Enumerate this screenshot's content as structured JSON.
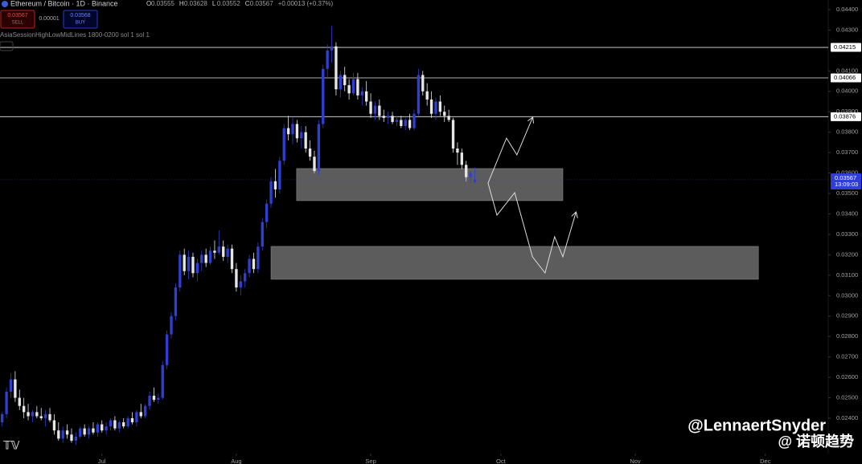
{
  "chart_data": {
    "type": "candlestick",
    "title": "Ethereum / Bitcoin · 1D · Binance",
    "indicator": "AsiaSessionHighLowMidLines 1800-0200 sol 1 sol 1",
    "ohlc_letters": [
      "O",
      "H",
      "L",
      "C"
    ],
    "change": "+0.00013 (+0.37%)",
    "countdown": "13:09:03",
    "trade_panel": {
      "sell_price": 0.03567,
      "sell": "SELL",
      "spread": 1e-05,
      "buy_price": 0.03568,
      "buy": "BUY"
    },
    "up_color": "#2f3fd1",
    "down_color": "#e6e6e6",
    "grid": false,
    "xlim": [
      -0.5,
      190.5
    ],
    "ylim": [
      0.02227,
      0.04447
    ],
    "xticks": [
      {
        "value": 23,
        "label": "Jul"
      },
      {
        "value": 54,
        "label": "Aug"
      },
      {
        "value": 85,
        "label": "Sep"
      },
      {
        "value": 115,
        "label": "Oct"
      },
      {
        "value": 146,
        "label": "Nov"
      },
      {
        "value": 176,
        "label": "Dec"
      }
    ],
    "yticks": [
      {
        "value": 0.044,
        "label": "0.04400"
      },
      {
        "value": 0.043,
        "label": "0.04300"
      },
      {
        "value": 0.041,
        "label": "0.04100"
      },
      {
        "value": 0.04,
        "label": "0.04000"
      },
      {
        "value": 0.039,
        "label": "0.03900"
      },
      {
        "value": 0.038,
        "label": "0.03800"
      },
      {
        "value": 0.037,
        "label": "0.03700"
      },
      {
        "value": 0.036,
        "label": "0.03600"
      },
      {
        "value": 0.035,
        "label": "0.03500"
      },
      {
        "value": 0.034,
        "label": "0.03400"
      },
      {
        "value": 0.033,
        "label": "0.03300"
      },
      {
        "value": 0.032,
        "label": "0.03200"
      },
      {
        "value": 0.031,
        "label": "0.03100"
      },
      {
        "value": 0.03,
        "label": "0.03000"
      },
      {
        "value": 0.029,
        "label": "0.02900"
      },
      {
        "value": 0.028,
        "label": "0.02800"
      },
      {
        "value": 0.027,
        "label": "0.02700"
      },
      {
        "value": 0.026,
        "label": "0.02600"
      },
      {
        "value": 0.025,
        "label": "0.02500"
      },
      {
        "value": 0.024,
        "label": "0.02400"
      }
    ],
    "levels": [
      0.04215,
      0.04066,
      0.03876
    ],
    "zones": [
      {
        "from": 67.9,
        "to": 129.3,
        "top": 0.03622,
        "bottom": 0.03465
      },
      {
        "from": 62,
        "to": 174.4,
        "top": 0.03241,
        "bottom": 0.0308
      }
    ],
    "projections": [
      {
        "x": [
          112.05,
          116.3,
          118.7,
          122.3
        ],
        "y": [
          0.03551,
          0.03771,
          0.03689,
          0.0387
        ]
      },
      {
        "x": [
          112.05,
          114.1,
          118.2,
          122.3,
          125.2,
          127.4,
          129.3,
          132.3
        ],
        "y": [
          0.03551,
          0.03394,
          0.03504,
          0.0319,
          0.03111,
          0.03288,
          0.0319,
          0.03406
        ]
      }
    ],
    "watermark": "@LennaertSnyder",
    "watermark2": "@ 诺顿趋势",
    "candles": [
      [
        0.0238,
        0.0243,
        0.0236,
        0.0242
      ],
      [
        0.0242,
        0.0255,
        0.024,
        0.0253
      ],
      [
        0.0253,
        0.0262,
        0.025,
        0.0259
      ],
      [
        0.0259,
        0.0263,
        0.0248,
        0.025
      ],
      [
        0.025,
        0.0254,
        0.0244,
        0.0246
      ],
      [
        0.0246,
        0.025,
        0.024,
        0.0243
      ],
      [
        0.0243,
        0.0247,
        0.0239,
        0.0241
      ],
      [
        0.0241,
        0.0244,
        0.0238,
        0.0243
      ],
      [
        0.0243,
        0.0246,
        0.024,
        0.0241
      ],
      [
        0.0241,
        0.0245,
        0.0239,
        0.024
      ],
      [
        0.024,
        0.0244,
        0.0236,
        0.0242
      ],
      [
        0.0242,
        0.0245,
        0.0238,
        0.0239
      ],
      [
        0.0239,
        0.0242,
        0.0232,
        0.0234
      ],
      [
        0.0234,
        0.0238,
        0.0229,
        0.023
      ],
      [
        0.023,
        0.0236,
        0.0228,
        0.0234
      ],
      [
        0.0234,
        0.0237,
        0.023,
        0.0232
      ],
      [
        0.0232,
        0.0235,
        0.0228,
        0.0229
      ],
      [
        0.0229,
        0.0233,
        0.0227,
        0.0231
      ],
      [
        0.0231,
        0.0236,
        0.023,
        0.0235
      ],
      [
        0.0235,
        0.0237,
        0.0231,
        0.0232
      ],
      [
        0.0232,
        0.0236,
        0.023,
        0.0235
      ],
      [
        0.0235,
        0.0238,
        0.0232,
        0.0233
      ],
      [
        0.0233,
        0.0238,
        0.0231,
        0.0237
      ],
      [
        0.0237,
        0.0239,
        0.0233,
        0.0234
      ],
      [
        0.0234,
        0.0238,
        0.0232,
        0.0236
      ],
      [
        0.0236,
        0.024,
        0.0234,
        0.0239
      ],
      [
        0.0239,
        0.0241,
        0.0234,
        0.0235
      ],
      [
        0.0235,
        0.0239,
        0.0233,
        0.0238
      ],
      [
        0.0238,
        0.024,
        0.0235,
        0.0236
      ],
      [
        0.0236,
        0.0241,
        0.0235,
        0.024
      ],
      [
        0.024,
        0.0243,
        0.0237,
        0.0238
      ],
      [
        0.0238,
        0.0244,
        0.0236,
        0.0243
      ],
      [
        0.0243,
        0.0247,
        0.024,
        0.0241
      ],
      [
        0.0241,
        0.0247,
        0.024,
        0.0246
      ],
      [
        0.0246,
        0.0253,
        0.0244,
        0.0251
      ],
      [
        0.0251,
        0.0255,
        0.0248,
        0.0249
      ],
      [
        0.0249,
        0.0252,
        0.0247,
        0.025
      ],
      [
        0.025,
        0.0268,
        0.0249,
        0.0266
      ],
      [
        0.0266,
        0.0283,
        0.0264,
        0.0281
      ],
      [
        0.0281,
        0.0292,
        0.0279,
        0.029
      ],
      [
        0.029,
        0.0306,
        0.0288,
        0.0304
      ],
      [
        0.0304,
        0.0322,
        0.0302,
        0.032
      ],
      [
        0.032,
        0.0323,
        0.031,
        0.0312
      ],
      [
        0.0312,
        0.0322,
        0.0308,
        0.0319
      ],
      [
        0.0319,
        0.0321,
        0.0309,
        0.0311
      ],
      [
        0.0311,
        0.0318,
        0.0307,
        0.0316
      ],
      [
        0.0316,
        0.0322,
        0.0312,
        0.032
      ],
      [
        0.032,
        0.0323,
        0.0314,
        0.0316
      ],
      [
        0.0316,
        0.0324,
        0.0315,
        0.0322
      ],
      [
        0.0322,
        0.0327,
        0.0318,
        0.0321
      ],
      [
        0.0321,
        0.0332,
        0.032,
        0.0324
      ],
      [
        0.0324,
        0.0327,
        0.0317,
        0.0319
      ],
      [
        0.0319,
        0.0325,
        0.0316,
        0.0323
      ],
      [
        0.0323,
        0.0325,
        0.0311,
        0.0313
      ],
      [
        0.0313,
        0.0316,
        0.0302,
        0.0304
      ],
      [
        0.0304,
        0.031,
        0.03,
        0.0307
      ],
      [
        0.0307,
        0.0313,
        0.0304,
        0.0311
      ],
      [
        0.0311,
        0.032,
        0.0309,
        0.0318
      ],
      [
        0.0318,
        0.0321,
        0.0311,
        0.0313
      ],
      [
        0.0313,
        0.0326,
        0.0311,
        0.0324
      ],
      [
        0.0324,
        0.0338,
        0.0322,
        0.0336
      ],
      [
        0.0336,
        0.0347,
        0.0333,
        0.0345
      ],
      [
        0.0345,
        0.0358,
        0.0343,
        0.0356
      ],
      [
        0.0356,
        0.0362,
        0.0348,
        0.0352
      ],
      [
        0.0352,
        0.0368,
        0.035,
        0.0366
      ],
      [
        0.0366,
        0.0384,
        0.0364,
        0.0382
      ],
      [
        0.0382,
        0.0388,
        0.0376,
        0.0379
      ],
      [
        0.0379,
        0.0387,
        0.0374,
        0.0384
      ],
      [
        0.0384,
        0.0386,
        0.0375,
        0.0377
      ],
      [
        0.0377,
        0.0383,
        0.0372,
        0.038
      ],
      [
        0.038,
        0.0383,
        0.037,
        0.0372
      ],
      [
        0.0372,
        0.0376,
        0.0366,
        0.0368
      ],
      [
        0.0368,
        0.0371,
        0.036,
        0.0361
      ],
      [
        0.0361,
        0.0386,
        0.0359,
        0.0384
      ],
      [
        0.0384,
        0.0413,
        0.0382,
        0.0411
      ],
      [
        0.0411,
        0.0423,
        0.0407,
        0.042
      ],
      [
        0.042,
        0.0432,
        0.0414,
        0.0422
      ],
      [
        0.0422,
        0.0424,
        0.0398,
        0.0401
      ],
      [
        0.0401,
        0.041,
        0.0397,
        0.0408
      ],
      [
        0.0408,
        0.0412,
        0.04,
        0.0403
      ],
      [
        0.0403,
        0.0406,
        0.0396,
        0.0399
      ],
      [
        0.0399,
        0.0409,
        0.0398,
        0.0406
      ],
      [
        0.0406,
        0.0409,
        0.0396,
        0.0398
      ],
      [
        0.0398,
        0.0402,
        0.0393,
        0.04
      ],
      [
        0.04,
        0.0405,
        0.0393,
        0.0395
      ],
      [
        0.0395,
        0.0399,
        0.0387,
        0.0389
      ],
      [
        0.0389,
        0.0395,
        0.0386,
        0.0393
      ],
      [
        0.0393,
        0.0396,
        0.0386,
        0.0388
      ],
      [
        0.0388,
        0.0391,
        0.0385,
        0.0387
      ],
      [
        0.0387,
        0.039,
        0.0384,
        0.0388
      ],
      [
        0.0388,
        0.039,
        0.0384,
        0.0385
      ],
      [
        0.0385,
        0.0388,
        0.0383,
        0.0386
      ],
      [
        0.0386,
        0.0388,
        0.0382,
        0.0383
      ],
      [
        0.0383,
        0.0387,
        0.0381,
        0.0386
      ],
      [
        0.0386,
        0.0389,
        0.0381,
        0.0382
      ],
      [
        0.0382,
        0.0391,
        0.0381,
        0.0389
      ],
      [
        0.0389,
        0.0411,
        0.0388,
        0.0408
      ],
      [
        0.0408,
        0.041,
        0.0398,
        0.04
      ],
      [
        0.04,
        0.0404,
        0.0393,
        0.0396
      ],
      [
        0.0396,
        0.04,
        0.0387,
        0.0389
      ],
      [
        0.0389,
        0.0397,
        0.0386,
        0.0395
      ],
      [
        0.0395,
        0.0398,
        0.0388,
        0.039
      ],
      [
        0.039,
        0.0393,
        0.0385,
        0.0388
      ],
      [
        0.0388,
        0.0391,
        0.0385,
        0.0386
      ],
      [
        0.0386,
        0.0387,
        0.037,
        0.0372
      ],
      [
        0.0372,
        0.0375,
        0.0364,
        0.037
      ],
      [
        0.037,
        0.0372,
        0.0362,
        0.0364
      ],
      [
        0.0364,
        0.0366,
        0.0356,
        0.0358
      ],
      [
        0.0358,
        0.0361,
        0.0355,
        0.036
      ],
      [
        0.03555,
        0.03628,
        0.03552,
        0.03567
      ]
    ]
  }
}
